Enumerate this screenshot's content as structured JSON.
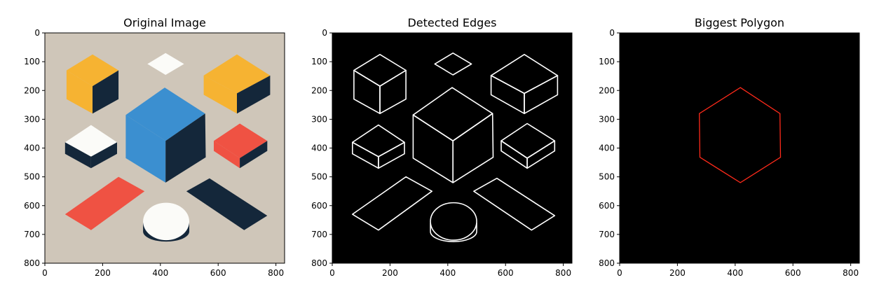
{
  "chart_data": [
    {
      "type": "image",
      "title": "Original Image",
      "xlim": [
        0,
        830
      ],
      "ylim": [
        800,
        0
      ],
      "x_ticks": [
        0,
        200,
        400,
        600,
        800
      ],
      "y_ticks": [
        0,
        100,
        200,
        300,
        400,
        500,
        600,
        700,
        800
      ],
      "background": "#cfc6b9",
      "content": "abstract flat shapes: cubes, diamond, parallelograms, cylinder"
    },
    {
      "type": "image",
      "title": "Detected Edges",
      "xlim": [
        0,
        830
      ],
      "ylim": [
        800,
        0
      ],
      "x_ticks": [
        0,
        200,
        400,
        600,
        800
      ],
      "y_ticks": [
        0,
        100,
        200,
        300,
        400,
        500,
        600,
        700,
        800
      ],
      "background": "#000000",
      "edge_color": "#ffffff"
    },
    {
      "type": "image",
      "title": "Biggest Polygon",
      "xlim": [
        0,
        830
      ],
      "ylim": [
        800,
        0
      ],
      "x_ticks": [
        0,
        200,
        400,
        600,
        800
      ],
      "y_ticks": [
        0,
        100,
        200,
        300,
        400,
        500,
        600,
        700,
        800
      ],
      "background": "#000000",
      "polygon_color": "#ff2a1a",
      "polygon": [
        [
          418,
          190
        ],
        [
          555,
          280
        ],
        [
          557,
          432
        ],
        [
          418,
          520
        ],
        [
          278,
          432
        ],
        [
          276,
          280
        ]
      ]
    }
  ],
  "colors": {
    "yellow": "#f6b332",
    "navy": "#14273a",
    "blue": "#3b8fd0",
    "red": "#ef5243",
    "white": "#fbfbf8",
    "beige": "#cfc6b9"
  }
}
